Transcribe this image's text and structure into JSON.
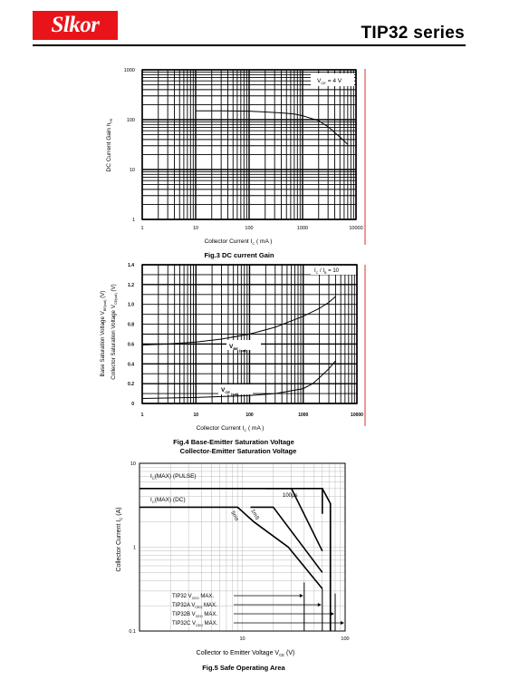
{
  "header": {
    "logo_text": "Slkor",
    "series_title": "TIP32  series"
  },
  "colors": {
    "logo_bg": "#e8141a",
    "logo_text": "#ffffff",
    "red_edge_line": "#d23030",
    "soa_grid": "#bbbbbb"
  },
  "chart_data": [
    {
      "type": "line",
      "x_scale": "log",
      "y_scale": "log",
      "xlim": [
        1,
        10000
      ],
      "ylim": [
        1,
        1000
      ],
      "x_ticks": [
        1,
        10,
        100,
        1000,
        10000
      ],
      "x_tick_labels": [
        "1",
        "10",
        "100",
        "1000",
        "10000"
      ],
      "y_ticks": [
        1,
        10,
        100,
        1000
      ],
      "y_tick_labels": [
        "1",
        "10",
        "100",
        "1000"
      ],
      "grid": true,
      "xlabel": "Collector Current",
      "xlabel_symbol": "I",
      "xlabel_sub": "C",
      "xlabel_unit": "( mA )",
      "ylabel": "DC Current Gain",
      "ylabel_symbol": "h",
      "ylabel_sub": "FE",
      "caption": "Fig.3  DC current Gain",
      "annotation": {
        "symbol": "V",
        "sub": "CE",
        "text": " = 4  V"
      },
      "series": [
        {
          "x": [
            10,
            30,
            100,
            200,
            400,
            700,
            1000,
            2000,
            3000,
            5000,
            7000
          ],
          "y": [
            150,
            150,
            148,
            143,
            137,
            130,
            120,
            95,
            72,
            45,
            32
          ]
        }
      ]
    },
    {
      "type": "line",
      "x_scale": "log",
      "y_scale": "linear",
      "xlim": [
        1,
        10000
      ],
      "ylim": [
        0,
        1.4
      ],
      "x_ticks": [
        1,
        10,
        100,
        1000,
        10000
      ],
      "x_tick_labels": [
        "1",
        "10",
        "100",
        "1000",
        "10000"
      ],
      "y_ticks": [
        0,
        0.2,
        0.4,
        0.6,
        0.8,
        1.0,
        1.2,
        1.4
      ],
      "y_tick_labels": [
        "0",
        "0.2",
        "0.4",
        "0.6",
        "0.8",
        "1.0",
        "1.2",
        "1.4"
      ],
      "grid": true,
      "xlabel": "Collector Current",
      "xlabel_symbol": "I",
      "xlabel_sub": "C",
      "xlabel_unit": "( mA )",
      "ylabel_1": "Base Saturation Voltage",
      "ylabel_1_symbol": "V",
      "ylabel_1_sub": "BE(sat)",
      "ylabel_1_unit": "(V)",
      "ylabel_2": "Collector Saturation Voltage",
      "ylabel_2_symbol": "V",
      "ylabel_2_sub": "CE(sat)",
      "ylabel_2_unit": "(V)",
      "caption_1": "Fig.4 Base-Emitter Saturation Voltage",
      "caption_2": "Collector-Emitter Saturation Voltage",
      "annotation": {
        "symbol_1": "I",
        "sub_1": "C",
        "mid": " / I",
        "sub_2": "B",
        "text": " = 10"
      },
      "series": [
        {
          "label_symbol": "V",
          "label_sub_1": "BE",
          "label_sub_2": "(sat)",
          "x": [
            1,
            3,
            10,
            30,
            100,
            300,
            1000,
            2000,
            3000,
            4000
          ],
          "y": [
            0.59,
            0.6,
            0.62,
            0.65,
            0.7,
            0.77,
            0.88,
            0.96,
            1.02,
            1.08
          ]
        },
        {
          "label_symbol": "V",
          "label_sub_1": "CE",
          "label_sub_2": "(sat)",
          "x": [
            1,
            10,
            100,
            300,
            1000,
            1500,
            2000,
            3000,
            4000
          ],
          "y": [
            0.05,
            0.06,
            0.08,
            0.1,
            0.15,
            0.2,
            0.26,
            0.35,
            0.43
          ]
        }
      ]
    },
    {
      "type": "line",
      "x_scale": "log",
      "y_scale": "log",
      "xlim": [
        1,
        100
      ],
      "ylim": [
        0.1,
        10
      ],
      "x_ticks": [
        10,
        100
      ],
      "x_tick_labels": [
        "10",
        "100"
      ],
      "y_ticks": [
        0.1,
        1,
        10
      ],
      "y_tick_labels": [
        "0.1",
        "1",
        "10"
      ],
      "grid": true,
      "xlabel": "Collector to Emitter Voltage",
      "xlabel_symbol": "V",
      "xlabel_sub": "CE",
      "xlabel_unit": "(V)",
      "ylabel": "Collector Current",
      "ylabel_symbol": "I",
      "ylabel_sub": "C",
      "ylabel_unit": "(A)",
      "caption": "Fig.5 Safe Operating Area",
      "labels": {
        "pulse": {
          "pre": "I",
          "sub": "C",
          "post": "(MAX) (PULSE)"
        },
        "dc": {
          "pre": "I",
          "sub": "C",
          "post": "(MAX) (DC)"
        },
        "us100": "100µs",
        "ms5": "5ms",
        "ms1": "1mS"
      },
      "vceo_labels": [
        {
          "pre": "TIP32 V",
          "sub": "CEO",
          "post": " MAX."
        },
        {
          "pre": "TIP32A V",
          "sub": "CEO",
          "post": " MAX."
        },
        {
          "pre": "TIP32B V",
          "sub": "CEO",
          "post": " MAX."
        },
        {
          "pre": "TIP32C V",
          "sub": "CEO",
          "post": " MAX."
        }
      ],
      "series": [
        {
          "name": "ic-max-pulse",
          "x": [
            1,
            60,
            60
          ],
          "y": [
            5,
            5,
            2.5
          ]
        },
        {
          "name": "dc",
          "x": [
            1,
            9,
            13,
            28,
            60
          ],
          "y": [
            3,
            3,
            2,
            1,
            0.32
          ]
        },
        {
          "name": "5ms",
          "x": [
            12,
            20,
            60
          ],
          "y": [
            3,
            3,
            0.5
          ]
        },
        {
          "name": "1ms",
          "x": [
            17,
            30,
            60
          ],
          "y": [
            5,
            5,
            0.9
          ]
        },
        {
          "name": "100us",
          "x": [
            60,
            72,
            72
          ],
          "y": [
            5,
            3.3,
            0.1
          ]
        },
        {
          "name": "vceo-tip32",
          "x": [
            40,
            40
          ],
          "y": [
            0.38,
            0.1
          ]
        },
        {
          "name": "vceo-tip32a",
          "x": [
            60,
            60
          ],
          "y": [
            0.32,
            0.1
          ]
        },
        {
          "name": "vceo-tip32b",
          "x": [
            80,
            80
          ],
          "y": [
            0.28,
            0.1
          ]
        },
        {
          "name": "vceo-tip32c",
          "x": [
            100,
            100
          ],
          "y": [
            0.24,
            0.1
          ]
        }
      ]
    }
  ]
}
